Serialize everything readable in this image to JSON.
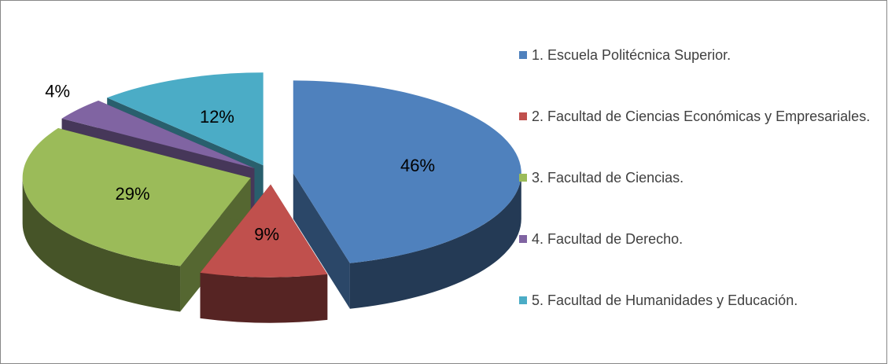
{
  "chart_data": {
    "type": "pie",
    "categories": [
      "1. Escuela Politécnica Superior.",
      "2. Facultad de Ciencias Económicas y Empresariales.",
      "3. Facultad de Ciencias.",
      "4. Facultad de Derecho.",
      "5. Facultad de Humanidades y Educación."
    ],
    "values": [
      46,
      9,
      29,
      4,
      12
    ],
    "value_labels": [
      "46%",
      "9%",
      "29%",
      "4%",
      "12%"
    ],
    "colors": [
      "#4f81bd",
      "#c0504d",
      "#9bbb59",
      "#8064a2",
      "#4bacc6"
    ],
    "legend": "right"
  }
}
